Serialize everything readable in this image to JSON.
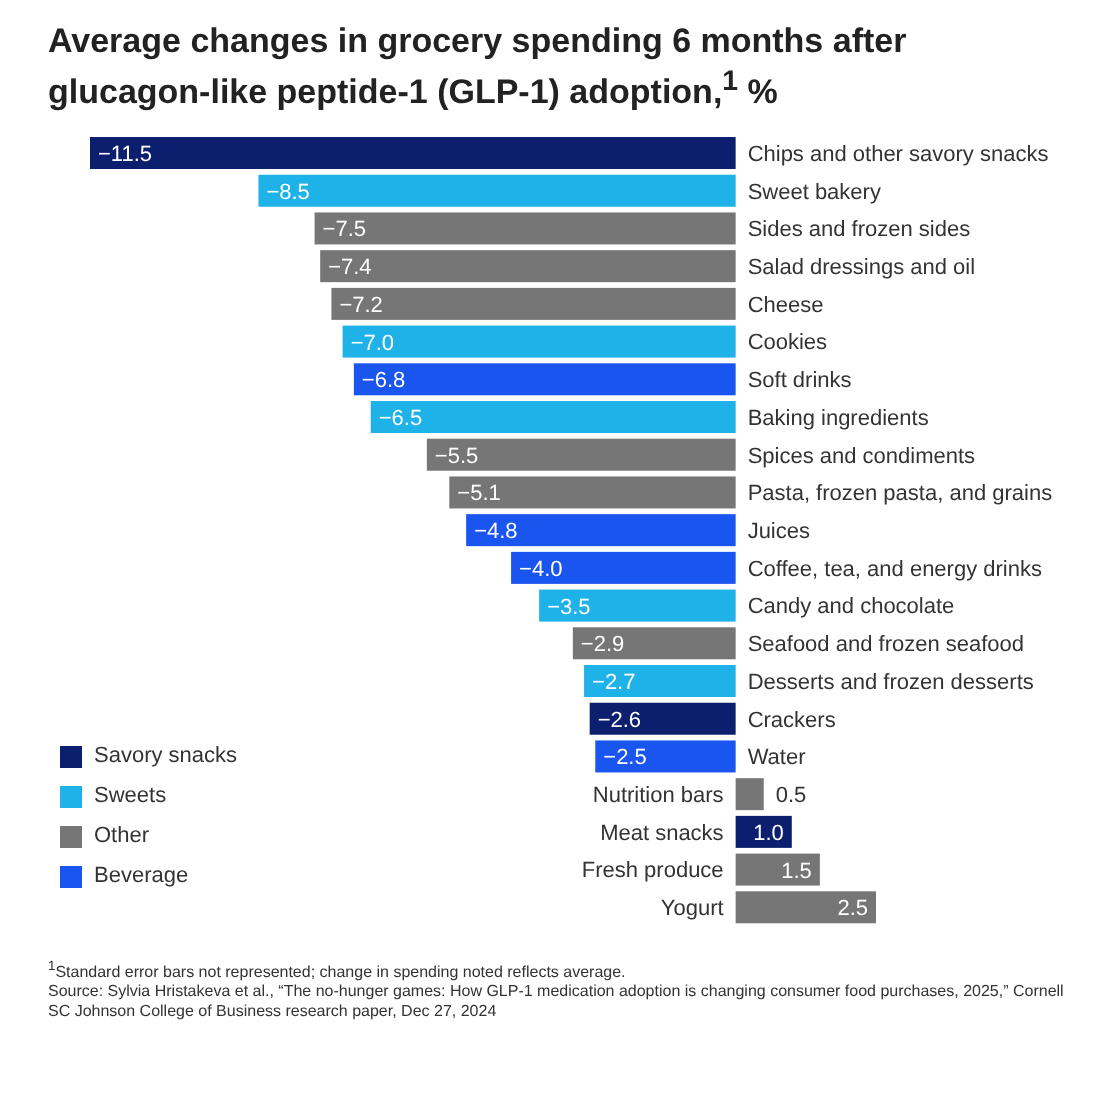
{
  "chart_data": {
    "type": "bar",
    "orientation": "horizontal",
    "stacked": true,
    "title": "Average changes in grocery spending 6 months after glucagon-like peptide-1 (GLP-1) adoption,$^{1}$ %",
    "categories": [
      "Chips and other savory snacks",
      "Sweet bakery",
      "Sides and frozen sides",
      "Salad dressings and oil",
      "Cheese",
      "Cookies",
      "Soft drinks",
      "Baking ingredients",
      "Spices and condiments",
      "Pasta, frozen pasta, and grains",
      "Juices",
      "Coffee, tea, and energy drinks",
      "Candy and chocolate",
      "Seafood and frozen seafood",
      "Desserts and frozen desserts",
      "Crackers",
      "Water",
      "Nutrition bars",
      "Meat snacks",
      "Fresh produce",
      "Yogurt"
    ],
    "series": [
      {
        "name": "Savory snacks",
        "color": "#0b1f6e",
        "values": [
          -11.5,
          null,
          null,
          null,
          null,
          null,
          null,
          null,
          null,
          null,
          null,
          null,
          null,
          null,
          null,
          -2.6,
          null,
          null,
          1.0,
          null,
          null
        ],
        "value_labels": [
          "−11.5",
          null,
          null,
          null,
          null,
          null,
          null,
          null,
          null,
          null,
          null,
          null,
          null,
          null,
          null,
          "−2.6",
          null,
          null,
          "1.0",
          null,
          null
        ]
      },
      {
        "name": "Sweets",
        "color": "#1eb2e8",
        "values": [
          null,
          -8.5,
          null,
          null,
          null,
          -7.0,
          null,
          -6.5,
          null,
          null,
          null,
          null,
          -3.5,
          null,
          -2.7,
          null,
          null,
          null,
          null,
          null,
          null
        ],
        "value_labels": [
          null,
          "−8.5",
          null,
          null,
          null,
          "−7.0",
          null,
          "−6.5",
          null,
          null,
          null,
          null,
          "−3.5",
          null,
          "−2.7",
          null,
          null,
          null,
          null,
          null,
          null
        ]
      },
      {
        "name": "Other",
        "color": "#767676",
        "values": [
          null,
          null,
          -7.5,
          -7.4,
          -7.2,
          null,
          null,
          null,
          -5.5,
          -5.1,
          null,
          null,
          null,
          -2.9,
          null,
          null,
          null,
          0.5,
          null,
          1.5,
          2.5
        ],
        "value_labels": [
          null,
          null,
          "−7.5",
          "−7.4",
          "−7.2",
          null,
          null,
          null,
          "−5.5",
          "−5.1",
          null,
          null,
          null,
          "−2.9",
          null,
          null,
          null,
          "0.5",
          null,
          "1.5",
          "2.5"
        ]
      },
      {
        "name": "Beverage",
        "color": "#1a55f0",
        "values": [
          null,
          null,
          null,
          null,
          null,
          null,
          -6.8,
          null,
          null,
          null,
          -4.8,
          -4.0,
          null,
          null,
          null,
          null,
          -2.5,
          null,
          null,
          null,
          null
        ],
        "value_labels": [
          null,
          null,
          null,
          null,
          null,
          null,
          "−6.8",
          null,
          null,
          null,
          "−4.8",
          "−4.0",
          null,
          null,
          null,
          null,
          "−2.5",
          null,
          null,
          null,
          null
        ]
      }
    ],
    "legend": "bottom left",
    "annotations": [
      "$^{1}$Standard error bars not represented; change in spending noted reflects average.",
      "Source: Sylvia Hristakeva et al., “The no-hunger games: How GLP-1 medication adoption is changing consumer food purchases, 2025,” Cornell SC Johnson College of Business research paper, Dec 27, 2024"
    ]
  }
}
